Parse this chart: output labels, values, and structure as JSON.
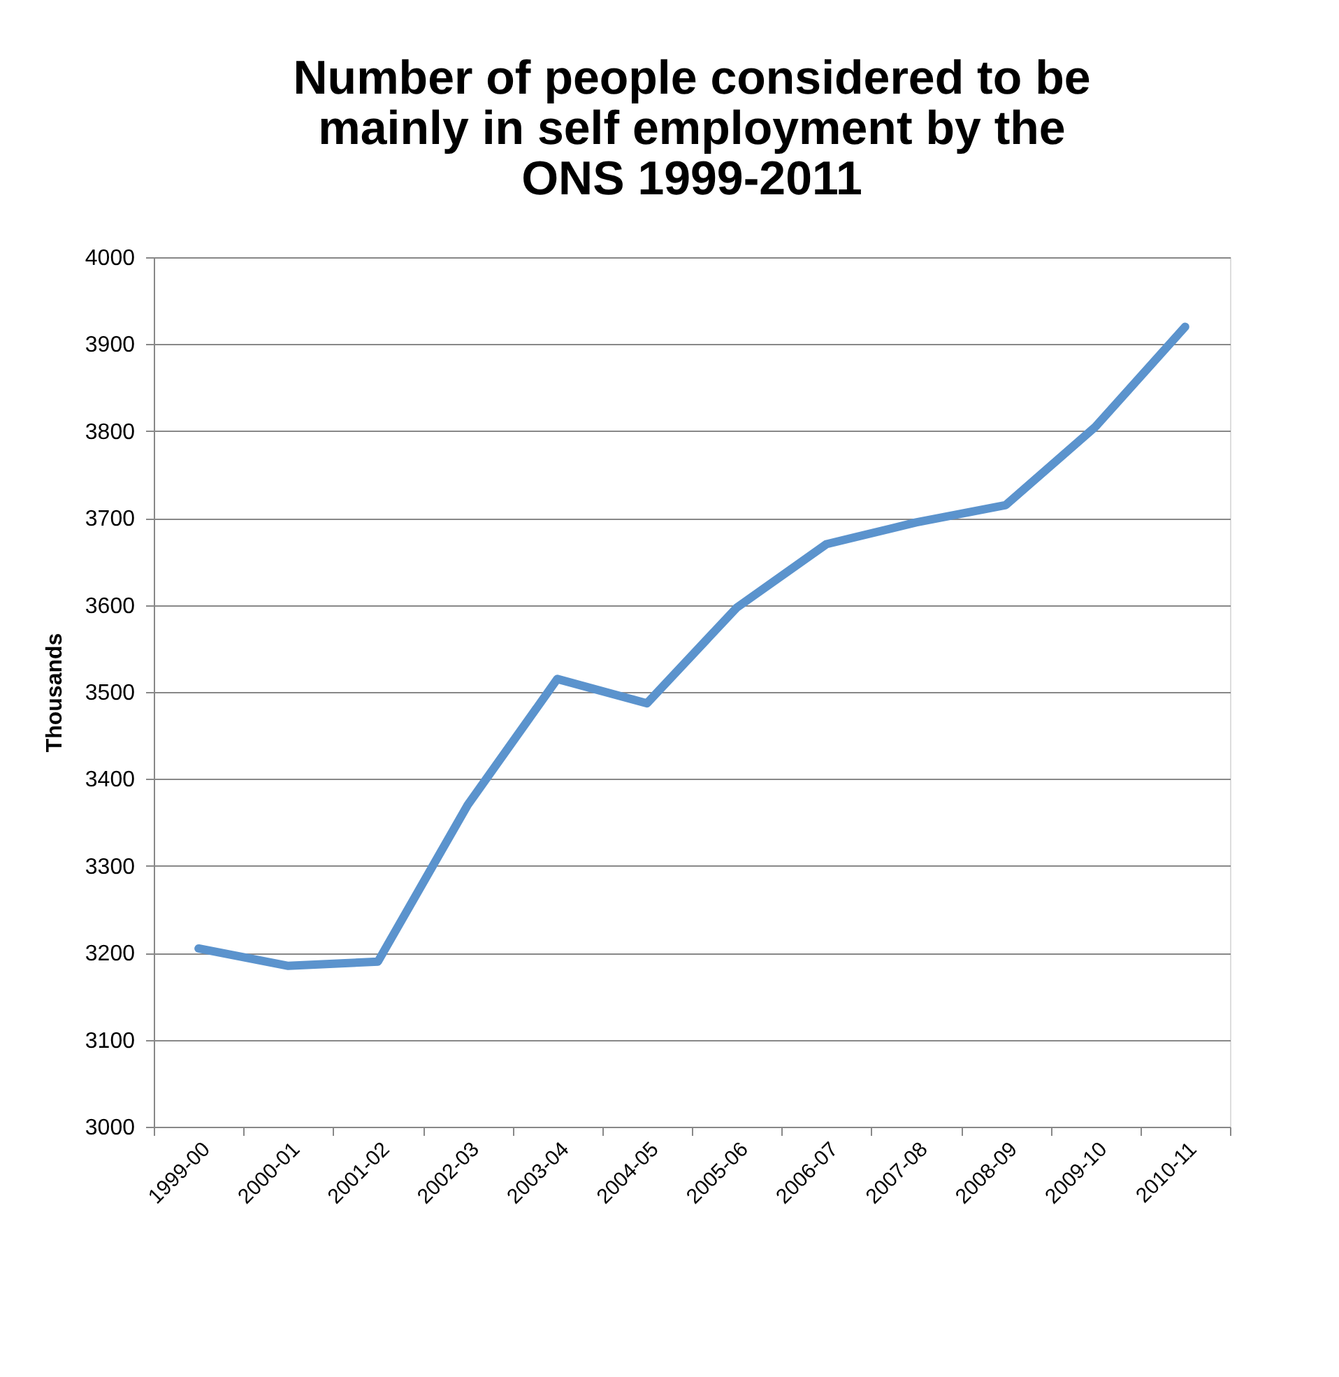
{
  "chart_data": {
    "type": "line",
    "title": "Number of people considered to be mainly in self employment by the ONS 1999-2011",
    "ylabel": "Thousands",
    "categories": [
      "1999-00",
      "2000-01",
      "2001-02",
      "2002-03",
      "2003-04",
      "2004-05",
      "2005-06",
      "2006-07",
      "2007-08",
      "2008-09",
      "2009-10",
      "2010-11"
    ],
    "series": [
      {
        "color": "#5b93cd",
        "values": [
          3205,
          3185,
          3190,
          3370,
          3515,
          3487,
          3597,
          3670,
          3695,
          3715,
          3805,
          3920
        ]
      }
    ],
    "ylim": [
      3000,
      4000
    ],
    "yticks": [
      3000,
      3100,
      3200,
      3300,
      3400,
      3500,
      3600,
      3700,
      3800,
      3900,
      4000
    ],
    "grid": "y",
    "legend": false,
    "marker": "none",
    "line_style": "solid"
  }
}
